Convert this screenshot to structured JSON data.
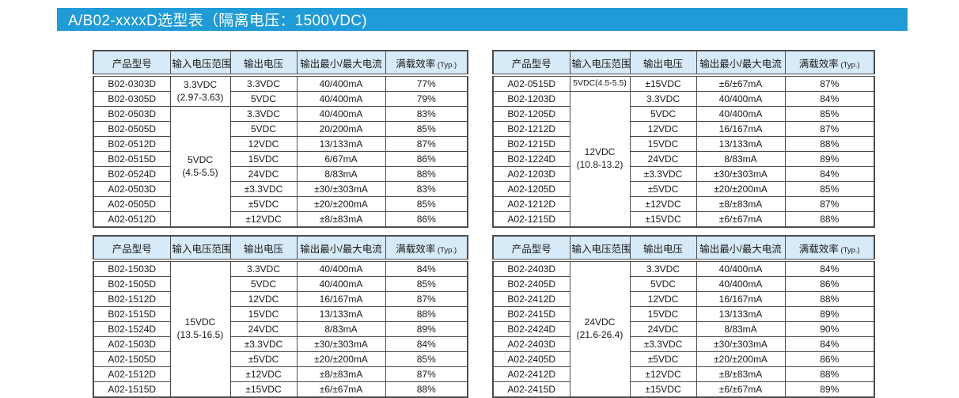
{
  "title_bar": {
    "text": "A/B02-xxxxD选型表（隔离电压：1500VDC)"
  },
  "colors": {
    "title_bar_bg": "#1f9bd7",
    "header_bg": "#d7eaf8",
    "border": "#4d4d4d",
    "title_text": "#ffffff"
  },
  "columns": {
    "model": "产品型号",
    "input_range": "输入电压范围",
    "output_voltage": "输出电压",
    "output_current": "输出最小/最大电流",
    "efficiency": "满载效率",
    "efficiency_note": "(Typ.)"
  },
  "tables": [
    {
      "position": "top-left",
      "groups": [
        {
          "input": [
            "3.3VDC",
            "(2.97-3.63)"
          ],
          "rows": [
            {
              "model": "B02-0303D",
              "vout": "3.3VDC",
              "current": "40/400mA",
              "eff": "77%"
            },
            {
              "model": "B02-0305D",
              "vout": "5VDC",
              "current": "40/400mA",
              "eff": "79%"
            }
          ]
        },
        {
          "input": [
            "5VDC",
            "(4.5-5.5)"
          ],
          "rows": [
            {
              "model": "B02-0503D",
              "vout": "3.3VDC",
              "current": "40/400mA",
              "eff": "83%"
            },
            {
              "model": "B02-0505D",
              "vout": "5VDC",
              "current": "20/200mA",
              "eff": "85%"
            },
            {
              "model": "B02-0512D",
              "vout": "12VDC",
              "current": "13/133mA",
              "eff": "87%"
            },
            {
              "model": "B02-0515D",
              "vout": "15VDC",
              "current": "6/67mA",
              "eff": "86%"
            },
            {
              "model": "B02-0524D",
              "vout": "24VDC",
              "current": "8/83mA",
              "eff": "88%"
            },
            {
              "model": "A02-0503D",
              "vout": "±3.3VDC",
              "current": "±30/±303mA",
              "eff": "83%"
            },
            {
              "model": "A02-0505D",
              "vout": "±5VDC",
              "current": "±20/±200mA",
              "eff": "85%"
            },
            {
              "model": "A02-0512D",
              "vout": "±12VDC",
              "current": "±8/±83mA",
              "eff": "86%"
            }
          ]
        }
      ]
    },
    {
      "position": "top-right",
      "groups": [
        {
          "input": [
            "5VDC(4.5-5.5)"
          ],
          "rows": [
            {
              "model": "A02-0515D",
              "vout": "±15VDC",
              "current": "±6/±67mA",
              "eff": "87%"
            }
          ]
        },
        {
          "input": [
            "12VDC",
            "(10.8-13.2)"
          ],
          "rows": [
            {
              "model": "B02-1203D",
              "vout": "3.3VDC",
              "current": "40/400mA",
              "eff": "84%"
            },
            {
              "model": "B02-1205D",
              "vout": "5VDC",
              "current": "40/400mA",
              "eff": "85%"
            },
            {
              "model": "B02-1212D",
              "vout": "12VDC",
              "current": "16/167mA",
              "eff": "87%"
            },
            {
              "model": "B02-1215D",
              "vout": "15VDC",
              "current": "13/133mA",
              "eff": "88%"
            },
            {
              "model": "B02-1224D",
              "vout": "24VDC",
              "current": "8/83mA",
              "eff": "89%"
            },
            {
              "model": "A02-1203D",
              "vout": "±3.3VDC",
              "current": "±30/±303mA",
              "eff": "84%"
            },
            {
              "model": "A02-1205D",
              "vout": "±5VDC",
              "current": "±20/±200mA",
              "eff": "85%"
            },
            {
              "model": "A02-1212D",
              "vout": "±12VDC",
              "current": "±8/±83mA",
              "eff": "87%"
            },
            {
              "model": "A02-1215D",
              "vout": "±15VDC",
              "current": "±6/±67mA",
              "eff": "88%"
            }
          ]
        }
      ]
    },
    {
      "position": "bottom-left",
      "groups": [
        {
          "input": [
            "15VDC",
            "(13.5-16.5)"
          ],
          "rows": [
            {
              "model": "B02-1503D",
              "vout": "3.3VDC",
              "current": "40/400mA",
              "eff": "84%"
            },
            {
              "model": "B02-1505D",
              "vout": "5VDC",
              "current": "40/400mA",
              "eff": "85%"
            },
            {
              "model": "B02-1512D",
              "vout": "12VDC",
              "current": "16/167mA",
              "eff": "87%"
            },
            {
              "model": "B02-1515D",
              "vout": "15VDC",
              "current": "13/133mA",
              "eff": "88%"
            },
            {
              "model": "B02-1524D",
              "vout": "24VDC",
              "current": "8/83mA",
              "eff": "89%"
            },
            {
              "model": "A02-1503D",
              "vout": "±3.3VDC",
              "current": "±30/±303mA",
              "eff": "84%"
            },
            {
              "model": "A02-1505D",
              "vout": "±5VDC",
              "current": "±20/±200mA",
              "eff": "85%"
            },
            {
              "model": "A02-1512D",
              "vout": "±12VDC",
              "current": "±8/±83mA",
              "eff": "87%"
            },
            {
              "model": "A02-1515D",
              "vout": "±15VDC",
              "current": "±6/±67mA",
              "eff": "88%"
            }
          ]
        }
      ]
    },
    {
      "position": "bottom-right",
      "groups": [
        {
          "input": [
            "24VDC",
            "(21.6-26.4)"
          ],
          "rows": [
            {
              "model": "B02-2403D",
              "vout": "3.3VDC",
              "current": "40/400mA",
              "eff": "84%"
            },
            {
              "model": "B02-2405D",
              "vout": "5VDC",
              "current": "40/400mA",
              "eff": "86%"
            },
            {
              "model": "B02-2412D",
              "vout": "12VDC",
              "current": "16/167mA",
              "eff": "88%"
            },
            {
              "model": "B02-2415D",
              "vout": "15VDC",
              "current": "13/133mA",
              "eff": "89%"
            },
            {
              "model": "B02-2424D",
              "vout": "24VDC",
              "current": "8/83mA",
              "eff": "90%"
            },
            {
              "model": "A02-2403D",
              "vout": "±3.3VDC",
              "current": "±30/±303mA",
              "eff": "84%"
            },
            {
              "model": "A02-2405D",
              "vout": "±5VDC",
              "current": "±20/±200mA",
              "eff": "86%"
            },
            {
              "model": "A02-2412D",
              "vout": "±12VDC",
              "current": "±8/±83mA",
              "eff": "88%"
            },
            {
              "model": "A02-2415D",
              "vout": "±15VDC",
              "current": "±6/±67mA",
              "eff": "89%"
            }
          ]
        }
      ]
    }
  ]
}
